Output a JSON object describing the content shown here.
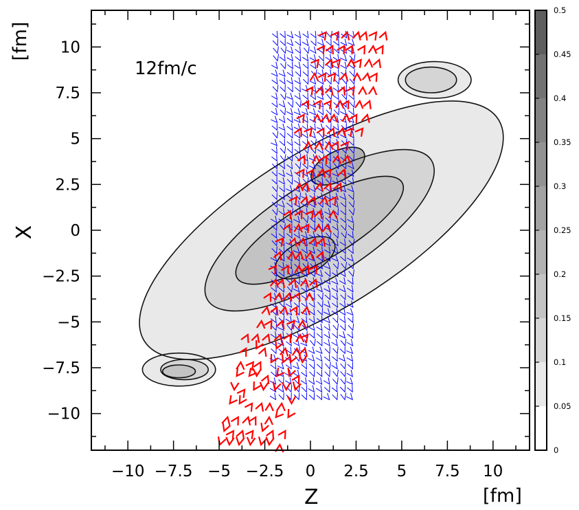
{
  "chart_data": {
    "type": "heatmap",
    "annotation": "12fm/c",
    "xlabel": "Z",
    "ylabel": "X",
    "x_unit": "[fm]",
    "y_unit": "[fm]",
    "xlim": [
      -12,
      12
    ],
    "ylim": [
      -12,
      12
    ],
    "x_ticks": [
      -10,
      -7.5,
      -5,
      -2.5,
      0,
      2.5,
      5,
      7.5,
      10
    ],
    "x_tick_labels": [
      "−10",
      "−7.5",
      "−5",
      "−2.5",
      "0",
      "2.5",
      "5",
      "7.5",
      "10"
    ],
    "y_ticks": [
      10,
      7.5,
      5,
      2.5,
      0,
      -2.5,
      -5,
      -7.5,
      -10
    ],
    "y_tick_labels": [
      "10",
      "7.5",
      "5",
      "2.5",
      "0",
      "−2.5",
      "−5",
      "−7.5",
      "−10"
    ],
    "colorbar": {
      "range": [
        0,
        0.5
      ],
      "levels": [
        0,
        0.05,
        0.1,
        0.15,
        0.2,
        0.25,
        0.3,
        0.35,
        0.4,
        0.45,
        0.5
      ],
      "labels": [
        "0",
        "0.05",
        "0.1",
        "0.15",
        "0.2",
        "0.25",
        "0.3",
        "0.35",
        "0.4",
        "0.45",
        "0.5"
      ],
      "colors": [
        "#ffffff",
        "#e9e9e9",
        "#d5d5d5",
        "#c3c3c3",
        "#b2b2b2",
        "#a2a2a2",
        "#929292",
        "#828282",
        "#727272",
        "#5e5e5e"
      ]
    },
    "contour_regions": [
      {
        "level": 0.05,
        "shape": "ellipse",
        "center": [
          0.6,
          0
        ],
        "semi_axes": [
          4.3,
          11.4
        ],
        "angle": 58
      },
      {
        "level": 0.05,
        "shape": "ellipse",
        "center": [
          -7.2,
          -7.6
        ],
        "semi_axes": [
          2.0,
          0.9
        ],
        "angle": 0
      },
      {
        "level": 0.05,
        "shape": "ellipse",
        "center": [
          6.8,
          8.2
        ],
        "semi_axes": [
          2.0,
          1.0
        ],
        "angle": 0
      },
      {
        "level": 0.1,
        "shape": "ellipse",
        "center": [
          0.5,
          0
        ],
        "semi_axes": [
          2.6,
          7.2
        ],
        "angle": 58
      },
      {
        "level": 0.1,
        "shape": "ellipse",
        "center": [
          -6.9,
          -7.6
        ],
        "semi_axes": [
          1.3,
          0.55
        ],
        "angle": 0
      },
      {
        "level": 0.1,
        "shape": "ellipse",
        "center": [
          6.6,
          8.2
        ],
        "semi_axes": [
          1.4,
          0.7
        ],
        "angle": 0
      },
      {
        "level": 0.15,
        "shape": "ellipse",
        "center": [
          0.5,
          0
        ],
        "semi_axes": [
          1.6,
          5.2
        ],
        "angle": 60
      },
      {
        "level": 0.15,
        "shape": "ellipse",
        "center": [
          -7.2,
          -7.7
        ],
        "semi_axes": [
          0.9,
          0.35
        ],
        "angle": 0
      },
      {
        "level": 0.2,
        "shape": "ellipse",
        "center": [
          -0.3,
          -1.5
        ],
        "semi_axes": [
          0.9,
          1.8
        ],
        "angle": 62
      },
      {
        "level": 0.2,
        "shape": "ellipse",
        "center": [
          1.5,
          3.5
        ],
        "semi_axes": [
          0.8,
          1.6
        ],
        "angle": 62
      }
    ],
    "vector_fields": [
      {
        "name": "blue",
        "color": "#0000ff",
        "z_range": [
          -1.5,
          2.2
        ],
        "x_range": [
          -9.5,
          10.5
        ],
        "direction": "downward-right chevrons"
      },
      {
        "name": "red",
        "color": "#ff0000",
        "z_range": [
          -3.0,
          3.8
        ],
        "x_range": [
          -12,
          11
        ],
        "direction": "upward chevrons along the diagonal"
      }
    ],
    "grid": false
  }
}
